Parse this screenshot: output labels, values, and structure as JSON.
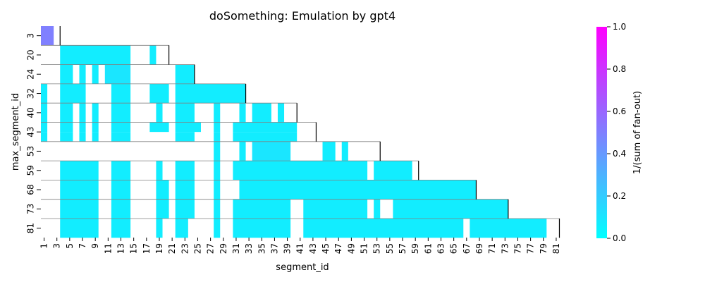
{
  "chart_data": {
    "type": "heatmap",
    "title": "doSomething: Emulation by gpt4",
    "xlabel": "segment_id",
    "ylabel": "max_segment_id",
    "x_tick_labels": [
      "1",
      "3",
      "5",
      "7",
      "9",
      "11",
      "13",
      "15",
      "17",
      "19",
      "21",
      "23",
      "25",
      "27",
      "29",
      "31",
      "33",
      "35",
      "37",
      "39",
      "41",
      "43",
      "45",
      "47",
      "49",
      "51",
      "53",
      "55",
      "57",
      "59",
      "61",
      "63",
      "65",
      "67",
      "69",
      "71",
      "73",
      "75",
      "77",
      "79",
      "81"
    ],
    "y_categories": [
      "3",
      "20",
      "24",
      "32",
      "40",
      "43",
      "53",
      "59",
      "68",
      "73",
      "81"
    ],
    "x_range": [
      1,
      81
    ],
    "colorbar": {
      "label": "1/(sum of fan-out)",
      "range": [
        0.0,
        1.0
      ],
      "ticks": [
        "0.0",
        "0.2",
        "0.4",
        "0.6",
        "0.8",
        "1.0"
      ],
      "colors": [
        "#00ffff",
        "#ff00ff"
      ]
    },
    "rows": [
      {
        "max_segment_id": 3,
        "sub_rows": 1,
        "cells": [
          {
            "start": 1,
            "end": 2,
            "value": 0.5,
            "sub": 0
          }
        ]
      },
      {
        "max_segment_id": 20,
        "sub_rows": 1,
        "cells": [
          {
            "start": 4,
            "end": 14,
            "value": 0.07,
            "sub": 0
          },
          {
            "start": 18,
            "end": 18,
            "value": 0.07,
            "sub": 0
          }
        ]
      },
      {
        "max_segment_id": 24,
        "sub_rows": 1,
        "cells": [
          {
            "start": 4,
            "end": 5,
            "value": 0.07,
            "sub": 0
          },
          {
            "start": 7,
            "end": 7,
            "value": 0.07,
            "sub": 0
          },
          {
            "start": 9,
            "end": 9,
            "value": 0.07,
            "sub": 0
          },
          {
            "start": 11,
            "end": 14,
            "value": 0.1,
            "sub": 0
          },
          {
            "start": 22,
            "end": 24,
            "value": 0.07,
            "sub": 0
          }
        ]
      },
      {
        "max_segment_id": 32,
        "sub_rows": 1,
        "cells": [
          {
            "start": 1,
            "end": 1,
            "value": 0.07,
            "sub": 0
          },
          {
            "start": 4,
            "end": 7,
            "value": 0.07,
            "sub": 0
          },
          {
            "start": 12,
            "end": 14,
            "value": 0.07,
            "sub": 0
          },
          {
            "start": 18,
            "end": 20,
            "value": 0.07,
            "sub": 0
          },
          {
            "start": 22,
            "end": 32,
            "value": 0.07,
            "sub": 0
          }
        ]
      },
      {
        "max_segment_id": 40,
        "sub_rows": 1,
        "cells": [
          {
            "start": 1,
            "end": 1,
            "value": 0.07,
            "sub": 0
          },
          {
            "start": 4,
            "end": 5,
            "value": 0.07,
            "sub": 0
          },
          {
            "start": 7,
            "end": 7,
            "value": 0.07,
            "sub": 0
          },
          {
            "start": 9,
            "end": 9,
            "value": 0.07,
            "sub": 0
          },
          {
            "start": 12,
            "end": 14,
            "value": 0.07,
            "sub": 0
          },
          {
            "start": 19,
            "end": 19,
            "value": 0.07,
            "sub": 0
          },
          {
            "start": 22,
            "end": 24,
            "value": 0.07,
            "sub": 0
          },
          {
            "start": 28,
            "end": 28,
            "value": 0.07,
            "sub": 0
          },
          {
            "start": 32,
            "end": 32,
            "value": 0.07,
            "sub": 0
          },
          {
            "start": 34,
            "end": 36,
            "value": 0.07,
            "sub": 0
          },
          {
            "start": 38,
            "end": 38,
            "value": 0.07,
            "sub": 0
          }
        ]
      },
      {
        "max_segment_id": 43,
        "sub_rows": 2,
        "cells": [
          {
            "start": 1,
            "end": 1,
            "value": 0.07,
            "sub": 0
          },
          {
            "start": 4,
            "end": 5,
            "value": 0.07,
            "sub": 0
          },
          {
            "start": 7,
            "end": 7,
            "value": 0.07,
            "sub": 0
          },
          {
            "start": 9,
            "end": 9,
            "value": 0.07,
            "sub": 0
          },
          {
            "start": 12,
            "end": 14,
            "value": 0.07,
            "sub": 0
          },
          {
            "start": 18,
            "end": 20,
            "value": 0.07,
            "sub": 0
          },
          {
            "start": 22,
            "end": 25,
            "value": 0.07,
            "sub": 0
          },
          {
            "start": 28,
            "end": 28,
            "value": 0.07,
            "sub": 0
          },
          {
            "start": 31,
            "end": 40,
            "value": 0.07,
            "sub": 0
          },
          {
            "start": 1,
            "end": 1,
            "value": 0.07,
            "sub": 1
          },
          {
            "start": 4,
            "end": 5,
            "value": 0.07,
            "sub": 1
          },
          {
            "start": 7,
            "end": 7,
            "value": 0.07,
            "sub": 1
          },
          {
            "start": 9,
            "end": 9,
            "value": 0.07,
            "sub": 1
          },
          {
            "start": 12,
            "end": 14,
            "value": 0.07,
            "sub": 1
          },
          {
            "start": 22,
            "end": 24,
            "value": 0.07,
            "sub": 1
          },
          {
            "start": 28,
            "end": 28,
            "value": 0.07,
            "sub": 1
          },
          {
            "start": 31,
            "end": 40,
            "value": 0.07,
            "sub": 1
          }
        ]
      },
      {
        "max_segment_id": 53,
        "sub_rows": 1,
        "cells": [
          {
            "start": 28,
            "end": 28,
            "value": 0.07,
            "sub": 0
          },
          {
            "start": 32,
            "end": 32,
            "value": 0.07,
            "sub": 0
          },
          {
            "start": 34,
            "end": 39,
            "value": 0.1,
            "sub": 0
          },
          {
            "start": 45,
            "end": 46,
            "value": 0.07,
            "sub": 0
          },
          {
            "start": 48,
            "end": 48,
            "value": 0.07,
            "sub": 0
          }
        ]
      },
      {
        "max_segment_id": 59,
        "sub_rows": 1,
        "cells": [
          {
            "start": 4,
            "end": 9,
            "value": 0.07,
            "sub": 0
          },
          {
            "start": 12,
            "end": 14,
            "value": 0.07,
            "sub": 0
          },
          {
            "start": 19,
            "end": 19,
            "value": 0.07,
            "sub": 0
          },
          {
            "start": 22,
            "end": 24,
            "value": 0.07,
            "sub": 0
          },
          {
            "start": 28,
            "end": 28,
            "value": 0.07,
            "sub": 0
          },
          {
            "start": 31,
            "end": 51,
            "value": 0.07,
            "sub": 0
          },
          {
            "start": 53,
            "end": 58,
            "value": 0.07,
            "sub": 0
          }
        ]
      },
      {
        "max_segment_id": 68,
        "sub_rows": 1,
        "cells": [
          {
            "start": 4,
            "end": 9,
            "value": 0.07,
            "sub": 0
          },
          {
            "start": 12,
            "end": 14,
            "value": 0.07,
            "sub": 0
          },
          {
            "start": 19,
            "end": 20,
            "value": 0.07,
            "sub": 0
          },
          {
            "start": 22,
            "end": 24,
            "value": 0.07,
            "sub": 0
          },
          {
            "start": 28,
            "end": 28,
            "value": 0.07,
            "sub": 0
          },
          {
            "start": 32,
            "end": 68,
            "value": 0.07,
            "sub": 0
          }
        ]
      },
      {
        "max_segment_id": 73,
        "sub_rows": 1,
        "cells": [
          {
            "start": 4,
            "end": 9,
            "value": 0.07,
            "sub": 0
          },
          {
            "start": 12,
            "end": 14,
            "value": 0.07,
            "sub": 0
          },
          {
            "start": 19,
            "end": 20,
            "value": 0.07,
            "sub": 0
          },
          {
            "start": 22,
            "end": 24,
            "value": 0.07,
            "sub": 0
          },
          {
            "start": 28,
            "end": 28,
            "value": 0.07,
            "sub": 0
          },
          {
            "start": 31,
            "end": 39,
            "value": 0.07,
            "sub": 0
          },
          {
            "start": 42,
            "end": 51,
            "value": 0.07,
            "sub": 0
          },
          {
            "start": 53,
            "end": 53,
            "value": 0.07,
            "sub": 0
          },
          {
            "start": 56,
            "end": 73,
            "value": 0.07,
            "sub": 0
          }
        ]
      },
      {
        "max_segment_id": 81,
        "sub_rows": 1,
        "cells": [
          {
            "start": 4,
            "end": 9,
            "value": 0.07,
            "sub": 0
          },
          {
            "start": 12,
            "end": 14,
            "value": 0.07,
            "sub": 0
          },
          {
            "start": 19,
            "end": 19,
            "value": 0.07,
            "sub": 0
          },
          {
            "start": 22,
            "end": 23,
            "value": 0.07,
            "sub": 0
          },
          {
            "start": 28,
            "end": 28,
            "value": 0.07,
            "sub": 0
          },
          {
            "start": 31,
            "end": 39,
            "value": 0.07,
            "sub": 0
          },
          {
            "start": 42,
            "end": 66,
            "value": 0.07,
            "sub": 0
          },
          {
            "start": 68,
            "end": 79,
            "value": 0.07,
            "sub": 0
          }
        ]
      }
    ]
  }
}
